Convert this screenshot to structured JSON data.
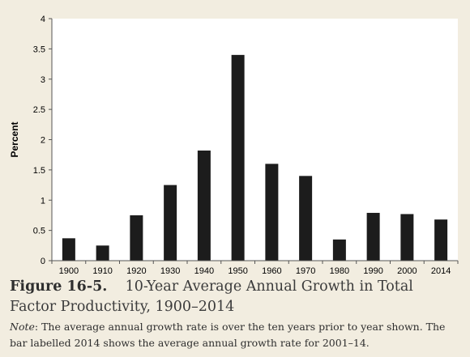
{
  "chart_data": {
    "type": "bar",
    "categories": [
      "1900",
      "1910",
      "1920",
      "1930",
      "1940",
      "1950",
      "1960",
      "1970",
      "1980",
      "1990",
      "2000",
      "2014"
    ],
    "values": [
      0.37,
      0.25,
      0.75,
      1.25,
      1.82,
      3.4,
      1.6,
      1.4,
      0.35,
      0.79,
      0.77,
      0.68
    ],
    "ylabel": "Percent",
    "xlabel": "",
    "ylim": [
      0,
      4
    ],
    "yticks": [
      "0",
      "0.5",
      "1",
      "1.5",
      "2",
      "2.5",
      "3",
      "3.5",
      "4"
    ],
    "grid": false,
    "bar_color": "#1c1c1c",
    "plot_background": "#ffffff"
  },
  "caption": {
    "label": "Figure 16-5.",
    "title": "10-Year Average Annual Growth in Total Factor Productivity, 1900–2014",
    "note_label": "Note",
    "note_text": ": The average annual growth rate is over the ten years prior to year shown. The bar labelled 2014 shows the average annual growth rate for 2001–14."
  }
}
